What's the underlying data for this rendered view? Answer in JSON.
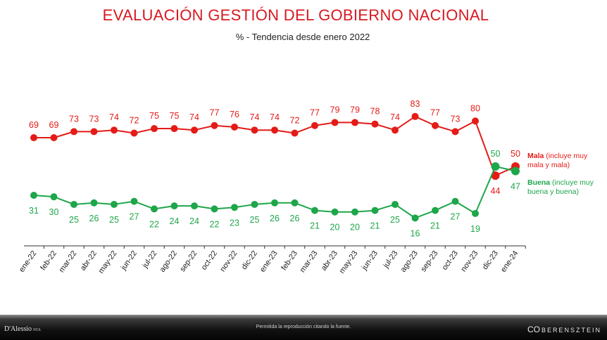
{
  "header": {
    "title": "EVALUACIÓN GESTIÓN DEL GOBIERNO NACIONAL",
    "subtitle": "% - Tendencia desde enero 2022"
  },
  "chart_data": {
    "type": "line",
    "categories": [
      "ene-22",
      "feb-22",
      "mar-22",
      "abr-22",
      "may-22",
      "jun-22",
      "jul-22",
      "ago-22",
      "sep-22",
      "oct-22",
      "nov-22",
      "dic-22",
      "ene-23",
      "feb-23",
      "mar-23",
      "abr-23",
      "may-23",
      "jun-23",
      "jul-23",
      "ago-23",
      "sep-23",
      "oct-23",
      "nov-23",
      "dic-23",
      "ene-24"
    ],
    "series": [
      {
        "name": "Mala",
        "note": "(incluye muy mala y mala)",
        "color": "#e41b17",
        "values": [
          69,
          69,
          73,
          73,
          74,
          72,
          75,
          75,
          74,
          77,
          76,
          74,
          74,
          72,
          77,
          79,
          79,
          78,
          74,
          83,
          77,
          73,
          80,
          44,
          50
        ]
      },
      {
        "name": "Buena",
        "note": "(incluye muy buena y buena)",
        "color": "#1ea64a",
        "values": [
          31,
          30,
          25,
          26,
          25,
          27,
          22,
          24,
          24,
          22,
          23,
          25,
          26,
          26,
          21,
          20,
          20,
          21,
          25,
          16,
          21,
          27,
          19,
          50,
          47
        ]
      }
    ],
    "ylim": [
      0,
      100
    ],
    "grid": false,
    "legend": "right"
  },
  "footer": {
    "note": "Permitida la reproducción citando la fuente.",
    "brand_left": "D'Alessio",
    "brand_left_sub": "IROL",
    "brand_right": "BERENSZTEIN",
    "brand_right_logo": "CO"
  }
}
